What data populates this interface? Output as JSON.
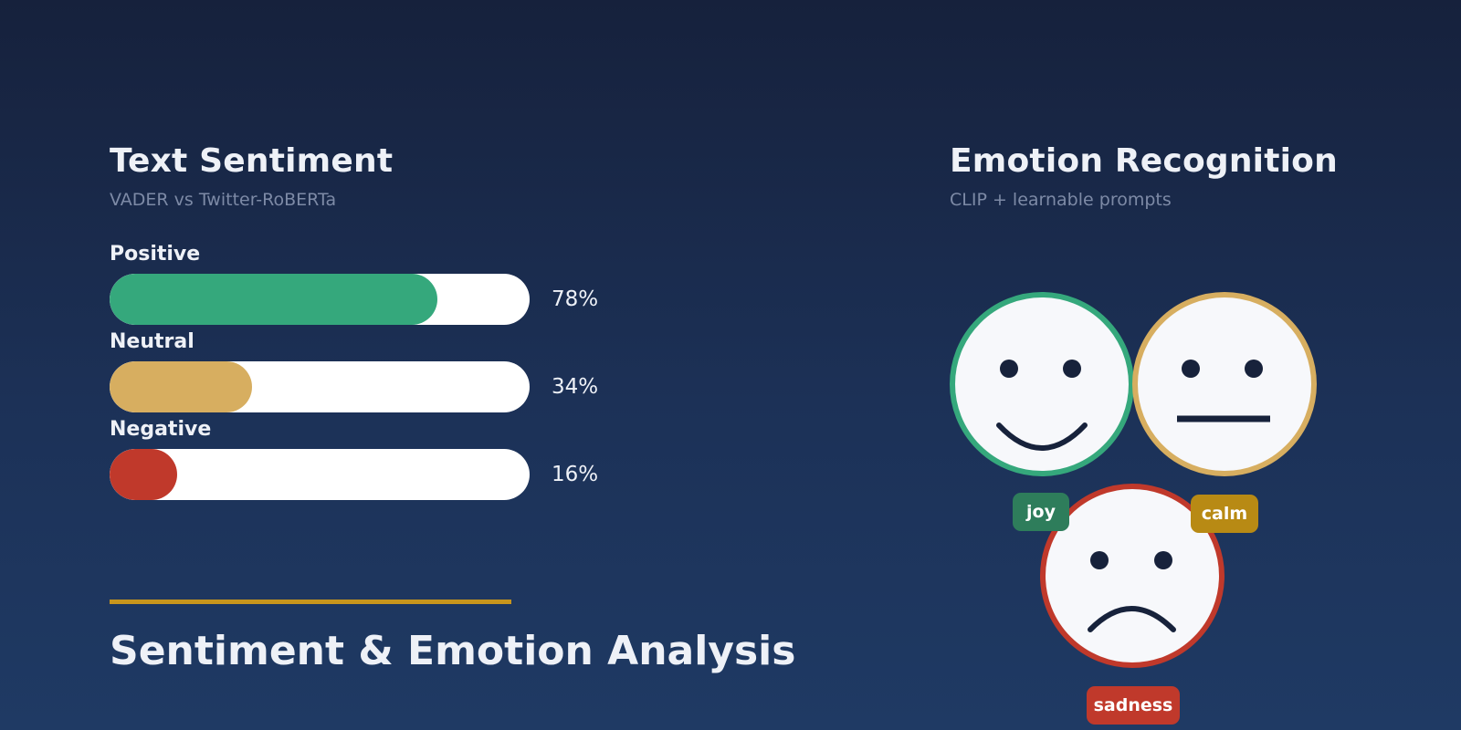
{
  "sentiment": {
    "title": "Text Sentiment",
    "subtitle": "VADER  vs  Twitter-RoBERTa",
    "bars": [
      {
        "label": "Positive",
        "value": 78,
        "value_text": "78%",
        "color": "#35a87c"
      },
      {
        "label": "Neutral",
        "value": 34,
        "value_text": "34%",
        "color": "#d7ae60"
      },
      {
        "label": "Negative",
        "value": 16,
        "value_text": "16%",
        "color": "#c0392b"
      }
    ]
  },
  "emotion": {
    "title": "Emotion Recognition",
    "subtitle": "CLIP + learnable prompts",
    "faces": [
      {
        "expression": "happy",
        "ring_color": "#35a87c",
        "icon": "happy-face-icon"
      },
      {
        "expression": "neutral",
        "ring_color": "#d7ae60",
        "icon": "neutral-face-icon"
      },
      {
        "expression": "sad",
        "ring_color": "#c0392b",
        "icon": "sad-face-icon"
      }
    ],
    "tags": [
      {
        "label": "joy",
        "color": "#2e7d5b"
      },
      {
        "label": "calm",
        "color": "#b88a14"
      },
      {
        "label": "sadness",
        "color": "#c0392b"
      }
    ]
  },
  "footer": {
    "title": "Sentiment & Emotion Analysis",
    "accent_color": "#c8951c"
  }
}
